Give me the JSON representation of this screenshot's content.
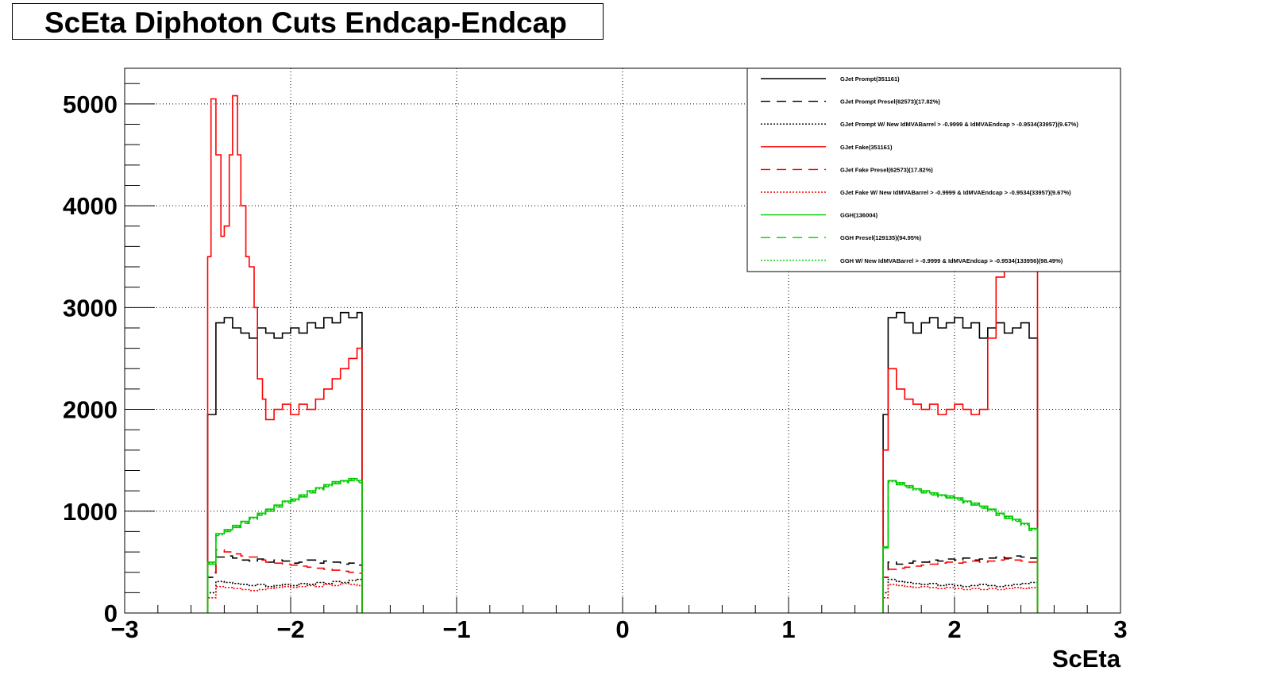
{
  "chart_data": {
    "type": "line",
    "title": "ScEta Diphoton Cuts Endcap-Endcap",
    "xlabel": "ScEta",
    "ylabel": "",
    "xlim": [
      -3,
      3
    ],
    "ylim": [
      0,
      5350
    ],
    "x_ticks": [
      -3,
      -2,
      -1,
      0,
      1,
      2,
      3
    ],
    "x_tick_labels": [
      "−3",
      "−2",
      "−1",
      "0",
      "1",
      "2",
      "3"
    ],
    "y_ticks": [
      0,
      1000,
      2000,
      3000,
      4000,
      5000
    ],
    "y_tick_labels": [
      "0",
      "1000",
      "2000",
      "3000",
      "4000",
      "5000"
    ],
    "grid": true,
    "legend_position": "top-right",
    "series": [
      {
        "name": "GJet Prompt(351161)",
        "color": "#000000",
        "style": "solid",
        "x": [
          -2.5,
          -2.45,
          -2.4,
          -2.35,
          -2.3,
          -2.25,
          -2.2,
          -2.15,
          -2.1,
          -2.05,
          -2.0,
          -1.95,
          -1.9,
          -1.85,
          -1.8,
          -1.75,
          -1.7,
          -1.65,
          -1.6,
          -1.57,
          1.57,
          1.6,
          1.65,
          1.7,
          1.75,
          1.8,
          1.85,
          1.9,
          1.95,
          2.0,
          2.05,
          2.1,
          2.15,
          2.2,
          2.25,
          2.3,
          2.35,
          2.4,
          2.45,
          2.5
        ],
        "y": [
          1950,
          2850,
          2900,
          2800,
          2750,
          2700,
          2800,
          2750,
          2700,
          2750,
          2800,
          2750,
          2850,
          2800,
          2900,
          2850,
          2950,
          2900,
          2950,
          1500,
          1950,
          2900,
          2950,
          2850,
          2750,
          2850,
          2900,
          2800,
          2850,
          2900,
          2800,
          2850,
          2700,
          2800,
          2850,
          2750,
          2800,
          2850,
          2700,
          1950
        ]
      },
      {
        "name": "GJet Prompt Presel(62573)(17.82%)",
        "color": "#000000",
        "style": "dashed",
        "x": [
          -2.5,
          -2.45,
          -2.4,
          -2.35,
          -2.3,
          -2.25,
          -2.2,
          -2.15,
          -2.1,
          -2.05,
          -2.0,
          -1.95,
          -1.9,
          -1.85,
          -1.8,
          -1.75,
          -1.7,
          -1.65,
          -1.6,
          -1.57,
          1.57,
          1.6,
          1.65,
          1.7,
          1.75,
          1.8,
          1.85,
          1.9,
          1.95,
          2.0,
          2.05,
          2.1,
          2.15,
          2.2,
          2.25,
          2.3,
          2.35,
          2.4,
          2.45,
          2.5
        ],
        "y": [
          350,
          550,
          560,
          540,
          520,
          510,
          530,
          500,
          520,
          510,
          490,
          500,
          520,
          490,
          510,
          500,
          480,
          490,
          470,
          300,
          350,
          500,
          480,
          490,
          510,
          500,
          520,
          510,
          530,
          520,
          540,
          520,
          530,
          540,
          550,
          540,
          560,
          550,
          540,
          400
        ]
      },
      {
        "name": "GJet Prompt W/ New IdMVABarrel > -0.9999 & IdMVAEndcap > -0.9534(33957)(9.67%)",
        "color": "#000000",
        "style": "dotted",
        "x": [
          -2.5,
          -2.45,
          -2.4,
          -2.35,
          -2.3,
          -2.25,
          -2.2,
          -2.15,
          -2.1,
          -2.05,
          -2.0,
          -1.95,
          -1.9,
          -1.85,
          -1.8,
          -1.75,
          -1.7,
          -1.65,
          -1.6,
          -1.57,
          1.57,
          1.6,
          1.65,
          1.7,
          1.75,
          1.8,
          1.85,
          1.9,
          1.95,
          2.0,
          2.05,
          2.1,
          2.15,
          2.2,
          2.25,
          2.3,
          2.35,
          2.4,
          2.45,
          2.5
        ],
        "y": [
          200,
          310,
          300,
          290,
          280,
          270,
          280,
          260,
          270,
          280,
          270,
          290,
          280,
          300,
          290,
          310,
          300,
          320,
          330,
          200,
          200,
          330,
          310,
          300,
          290,
          280,
          290,
          270,
          280,
          270,
          260,
          270,
          280,
          270,
          260,
          270,
          280,
          290,
          300,
          200
        ]
      },
      {
        "name": "GJet Fake(351161)",
        "color": "#ff0000",
        "style": "solid",
        "x": [
          -2.5,
          -2.48,
          -2.45,
          -2.42,
          -2.4,
          -2.37,
          -2.35,
          -2.32,
          -2.3,
          -2.27,
          -2.25,
          -2.22,
          -2.2,
          -2.17,
          -2.15,
          -2.1,
          -2.05,
          -2.0,
          -1.95,
          -1.9,
          -1.85,
          -1.8,
          -1.75,
          -1.7,
          -1.65,
          -1.6,
          -1.57,
          1.57,
          1.6,
          1.65,
          1.7,
          1.75,
          1.8,
          1.85,
          1.9,
          1.95,
          2.0,
          2.05,
          2.1,
          2.15,
          2.2,
          2.25,
          2.3,
          2.35,
          2.4,
          2.45,
          2.5
        ],
        "y": [
          3500,
          5050,
          4500,
          3700,
          3800,
          4500,
          5080,
          4500,
          4000,
          3500,
          3400,
          3000,
          2300,
          2100,
          1900,
          2000,
          2050,
          1950,
          2050,
          2000,
          2100,
          2200,
          2300,
          2400,
          2500,
          2600,
          1500,
          1600,
          2400,
          2200,
          2100,
          2050,
          2000,
          2050,
          1950,
          2000,
          2050,
          2000,
          1950,
          2000,
          2700,
          3300,
          3500,
          3500,
          3450,
          3400,
          3500
        ]
      },
      {
        "name": "GJet Fake Presel(62573)(17.82%)",
        "color": "#ff0000",
        "style": "dashed",
        "x": [
          -2.5,
          -2.45,
          -2.4,
          -2.35,
          -2.3,
          -2.25,
          -2.2,
          -2.15,
          -2.1,
          -2.05,
          -2.0,
          -1.95,
          -1.9,
          -1.85,
          -1.8,
          -1.75,
          -1.7,
          -1.65,
          -1.6,
          -1.57,
          1.57,
          1.6,
          1.65,
          1.7,
          1.75,
          1.8,
          1.85,
          1.9,
          1.95,
          2.0,
          2.05,
          2.1,
          2.15,
          2.2,
          2.25,
          2.3,
          2.35,
          2.4,
          2.45,
          2.5
        ],
        "y": [
          400,
          620,
          600,
          580,
          560,
          550,
          520,
          500,
          490,
          480,
          470,
          460,
          450,
          440,
          430,
          420,
          410,
          400,
          390,
          250,
          350,
          430,
          440,
          450,
          460,
          470,
          480,
          490,
          500,
          490,
          500,
          510,
          500,
          510,
          520,
          530,
          520,
          510,
          500,
          400
        ]
      },
      {
        "name": "GJet Fake W/ New IdMVABarrel > -0.9999 & IdMVAEndcap > -0.9534(33957)(9.67%)",
        "color": "#ff0000",
        "style": "dotted",
        "x": [
          -2.5,
          -2.45,
          -2.4,
          -2.35,
          -2.3,
          -2.25,
          -2.2,
          -2.15,
          -2.1,
          -2.05,
          -2.0,
          -1.95,
          -1.9,
          -1.85,
          -1.8,
          -1.75,
          -1.7,
          -1.65,
          -1.6,
          -1.57,
          1.57,
          1.6,
          1.65,
          1.7,
          1.75,
          1.8,
          1.85,
          1.9,
          1.95,
          2.0,
          2.05,
          2.1,
          2.15,
          2.2,
          2.25,
          2.3,
          2.35,
          2.4,
          2.45,
          2.5
        ],
        "y": [
          150,
          260,
          250,
          240,
          230,
          220,
          230,
          240,
          250,
          260,
          250,
          260,
          270,
          260,
          280,
          270,
          290,
          280,
          270,
          150,
          150,
          280,
          270,
          260,
          250,
          260,
          250,
          240,
          250,
          240,
          230,
          240,
          230,
          240,
          230,
          240,
          250,
          240,
          250,
          150
        ]
      },
      {
        "name": "GGH(136004)",
        "color": "#00cc00",
        "style": "solid",
        "x": [
          -2.5,
          -2.45,
          -2.4,
          -2.35,
          -2.3,
          -2.25,
          -2.2,
          -2.15,
          -2.1,
          -2.05,
          -2.0,
          -1.95,
          -1.9,
          -1.85,
          -1.8,
          -1.75,
          -1.7,
          -1.65,
          -1.6,
          -1.57,
          1.57,
          1.6,
          1.65,
          1.7,
          1.75,
          1.8,
          1.85,
          1.9,
          1.95,
          2.0,
          2.05,
          2.1,
          2.15,
          2.2,
          2.25,
          2.3,
          2.35,
          2.4,
          2.45,
          2.5
        ],
        "y": [
          500,
          780,
          820,
          860,
          900,
          940,
          980,
          1020,
          1060,
          1100,
          1120,
          1160,
          1200,
          1230,
          1260,
          1290,
          1300,
          1320,
          1300,
          700,
          650,
          1300,
          1280,
          1250,
          1220,
          1200,
          1180,
          1160,
          1150,
          1130,
          1100,
          1080,
          1050,
          1020,
          980,
          950,
          920,
          880,
          830,
          650
        ]
      },
      {
        "name": "GGH Presel(129135)(94.95%)",
        "color": "#00cc00",
        "style": "dashed",
        "x": [
          -2.5,
          -2.45,
          -2.4,
          -2.35,
          -2.3,
          -2.25,
          -2.2,
          -2.15,
          -2.1,
          -2.05,
          -2.0,
          -1.95,
          -1.9,
          -1.85,
          -1.8,
          -1.75,
          -1.7,
          -1.65,
          -1.6,
          -1.57,
          1.57,
          1.6,
          1.65,
          1.7,
          1.75,
          1.8,
          1.85,
          1.9,
          1.95,
          2.0,
          2.05,
          2.1,
          2.15,
          2.2,
          2.25,
          2.3,
          2.35,
          2.4,
          2.45,
          2.5
        ],
        "y": [
          480,
          760,
          800,
          840,
          880,
          920,
          960,
          1000,
          1040,
          1080,
          1100,
          1140,
          1180,
          1210,
          1240,
          1270,
          1280,
          1300,
          1280,
          690,
          640,
          1280,
          1260,
          1230,
          1200,
          1180,
          1160,
          1140,
          1130,
          1110,
          1080,
          1060,
          1030,
          1000,
          960,
          930,
          900,
          860,
          810,
          640
        ]
      },
      {
        "name": "GGH W/ New IdMVABarrel > -0.9999 & IdMVAEndcap > -0.9534(133956)(98.49%)",
        "color": "#00cc00",
        "style": "dotted",
        "x": [
          -2.5,
          -2.45,
          -2.4,
          -2.35,
          -2.3,
          -2.25,
          -2.2,
          -2.15,
          -2.1,
          -2.05,
          -2.0,
          -1.95,
          -1.9,
          -1.85,
          -1.8,
          -1.75,
          -1.7,
          -1.65,
          -1.6,
          -1.57,
          1.57,
          1.6,
          1.65,
          1.7,
          1.75,
          1.8,
          1.85,
          1.9,
          1.95,
          2.0,
          2.05,
          2.1,
          2.15,
          2.2,
          2.25,
          2.3,
          2.35,
          2.4,
          2.45,
          2.5
        ],
        "y": [
          490,
          770,
          810,
          850,
          890,
          930,
          970,
          1010,
          1050,
          1090,
          1110,
          1150,
          1190,
          1220,
          1250,
          1280,
          1290,
          1310,
          1290,
          695,
          645,
          1290,
          1270,
          1240,
          1210,
          1190,
          1170,
          1150,
          1140,
          1120,
          1090,
          1070,
          1040,
          1010,
          970,
          940,
          910,
          870,
          820,
          645
        ]
      }
    ]
  }
}
